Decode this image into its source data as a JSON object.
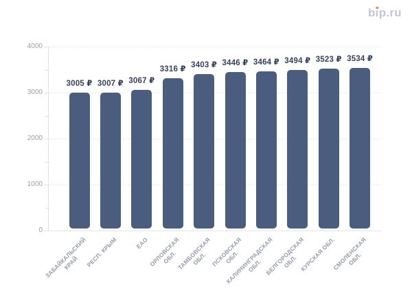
{
  "brand": {
    "part_b": "b",
    "part_i": "ı",
    "part_rest": "p.ru",
    "text_color": "#c3c7d4",
    "dot_color": "#ee7f63"
  },
  "chart_data": {
    "type": "bar",
    "title": "",
    "xlabel": "",
    "ylabel": "",
    "categories": [
      "ЗАБАЙКАЛЬСКИЙ\nКРАЙ",
      "РЕСП. КРЫМ",
      "ЕАО",
      "ОРЛОВСКАЯ\nОБЛ.",
      "ТАМБОВСКАЯ\nОБЛ.",
      "ПСКОВСКАЯ\nОБЛ.",
      "КАЛИНИНГРАДСКАЯ\nОБЛ.",
      "БЕЛГОРОДСКАЯ\nОБЛ.",
      "КУРСКАЯ ОБЛ.",
      "СМОЛЕНСКАЯ\nОБЛ."
    ],
    "values": [
      3005,
      3007,
      3067,
      3316,
      3403,
      3446,
      3464,
      3494,
      3523,
      3534
    ],
    "value_suffix": " ₽",
    "ylim": [
      0,
      4000
    ],
    "yticks": [
      0,
      1000,
      2000,
      3000,
      4000
    ],
    "minor_tick_step": 500,
    "grid": "horizontal-dotted",
    "legend": "none",
    "bar_color": "#4a5d7e",
    "value_label_color": "#36415c",
    "tick_label_color": "#9aa0af",
    "axis_color": "#e2e3e8"
  }
}
